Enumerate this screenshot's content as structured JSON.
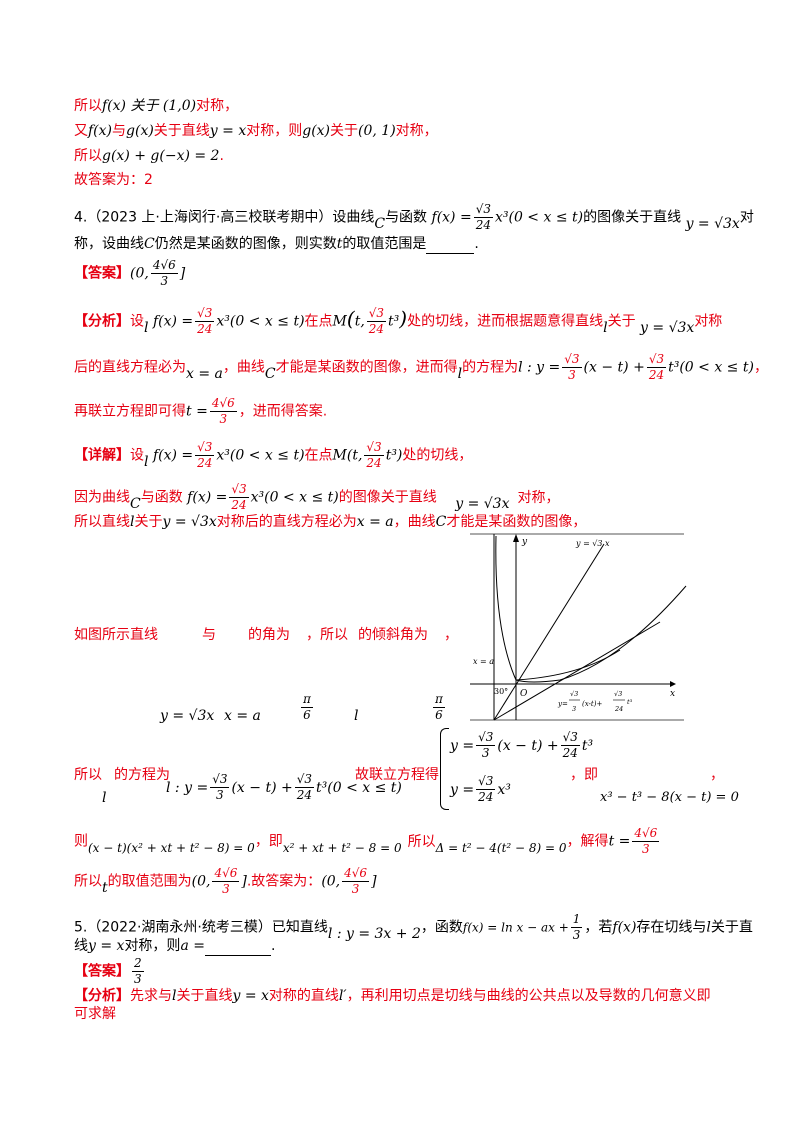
{
  "p3": {
    "l1": "所以",
    "l1_math": "f(x) 关于 (1,0)",
    "l1_end": "对称，",
    "l2a": "又",
    "l2_math1": "f(x)",
    "l2b": "与",
    "l2_math2": "g(x)",
    "l2c": "关于直线",
    "l2_math3": "y = x",
    "l2d": "对称，则",
    "l2_math4": "g(x)",
    "l2e": "关于",
    "l2_math5": "(0, 1)",
    "l2f": "对称，",
    "l3a": "所以",
    "l3_math": "g(x) + g(−x) = 2",
    "l3b": ".",
    "l4": "故答案为：2"
  },
  "q4": {
    "head": "4.（2023 上·上海闵行·高三校联考期中）设曲线",
    "head_C": "C",
    "head2": "与函数",
    "head_f": "f(x) =",
    "frac_num": "√3",
    "frac_den": "24",
    "head_f2": "x³(0 < x ≤ t)",
    "head3": "的图像关于直线",
    "head_line": "y = √3x",
    "head4": "对",
    "l2a": "称，设曲线",
    "l2_C": "C",
    "l2b": "仍然是某函数的图像，则实数",
    "l2_t": "t",
    "l2c": "的取值范围是",
    "l2d": ".",
    "answer_label": "【答案】",
    "answer_val": "(0,",
    "answer_num": "4√6",
    "answer_den": "3",
    "answer_end": "]",
    "analysis_label": "【分析】",
    "an1a": "设",
    "an1_l": "l",
    "an1_f": "f(x) =",
    "an1_f2": "x³(0 < x ≤ t)",
    "an1b": "在点",
    "an1_M": "M",
    "an1_Mt": "t,",
    "an1_Mt3": "t³",
    "an1c": "处的切线，进而根据题意得直线",
    "an1_l2": "l",
    "an1d": "关于",
    "an1_line": "y = √3x",
    "an1e": "对称",
    "an2a": "后的直线方程必为",
    "an2_xa": "x = a",
    "an2b": "，曲线",
    "an2_C": "C",
    "an2c": "才能是某函数的图像，进而得",
    "an2_l": "l",
    "an2d": "的方程为",
    "an2_eq": "l : y =",
    "an2_n1": "√3",
    "an2_d1": "3",
    "an2_eq2": "(x − t) +",
    "an2_n2": "√3",
    "an2_d2": "24",
    "an2_eq3": "t³(0 < x ≤ t)",
    "an2e": "，",
    "an3a": "再联立方程即可得",
    "an3_t": "t =",
    "an3_num": "4√6",
    "an3_den": "3",
    "an3b": "，进而得答案.",
    "detail_label": "【详解】",
    "d1a": "设",
    "d1_l": "l",
    "d1_f": "f(x) =",
    "d1_f2": "x³(0 < x ≤ t)",
    "d1b": "在点",
    "d1_M": "M(t,",
    "d1_M2": "t³)",
    "d1c": "处的切线，",
    "d2a": "因为曲线",
    "d2_C": "C",
    "d2b": "与函数",
    "d2_f": "f(x) =",
    "d2_f2": "x³(0 < x ≤ t)",
    "d2c": "的图像关于直线",
    "d2_line": "y = √3x",
    "d2d": "对称，",
    "d3a": "所以直线",
    "d3_l": "l",
    "d3b": "关于",
    "d3_line": "y = √3x",
    "d3c": "对称后的直线方程必为",
    "d3_xa": "x = a",
    "d3d": "，曲线",
    "d3_C": "C",
    "d3e": "才能是某函数的图像，",
    "d4a": "如图所示直线",
    "d4b": "与",
    "d4c": "的角为",
    "d4d": "，所以",
    "d4e": "的倾斜角为",
    "d4f": "，",
    "d4_line": "y = √3x",
    "d4_xa": "x = a",
    "d4_pi": "π",
    "d4_6": "6",
    "d4_l": "l",
    "d5a": "所以",
    "d5b": "的方程为",
    "d5_l": "l",
    "d5_eq": "l : y =",
    "d5_eq2": "(x − t) +",
    "d5_eq3": "t³(0 < x ≤ t)",
    "d5c": "故联立方程得",
    "sys1": "y =",
    "sys1b": "(x − t) +",
    "sys1c": "t³",
    "sys2": "y =",
    "sys2b": "x³",
    "d5d": "，即",
    "d5e": "，",
    "d5_cubic": "x³ − t³ − 8(x − t) = 0",
    "d6a": "则",
    "d6_eq": "(x − t)(x² + xt + t² − 8) = 0",
    "d6b": "，即",
    "d6_eq2": "x² + xt + t² − 8 = 0",
    "d6c": "所以",
    "d6_eq3": "Δ = t² − 4(t² − 8) = 0",
    "d6d": "，解得",
    "d6_t": "t =",
    "d7a": "所以",
    "d7_t": "t",
    "d7b": "的取值范围为",
    "d7_val": "(0,",
    "d7_end": "]",
    "d7c": ".故答案为：",
    "d7_val2": "(0,",
    "d7_end2": "]"
  },
  "figure": {
    "y_label": "y",
    "x_label": "x",
    "line_label": "y = √3 x",
    "xa_label": "x = a",
    "angle_label": "30°",
    "origin_label": "O",
    "tangent_label_a": "y=",
    "tangent_label_b": "(x-t)+",
    "tangent_label_c": "t³",
    "f_n1": "√3",
    "f_d1": "3",
    "f_n2": "√3",
    "f_d2": "24"
  },
  "q5": {
    "head": "5.（2022·湖南永州·统考三模）已知直线",
    "head_l": "l : y = 3x + 2",
    "head2": "，函数",
    "head_f": "f(x) = ln x − ax +",
    "head_frac_n": "1",
    "head_frac_d": "3",
    "head3": "，若",
    "head_fx": "f(x)",
    "head4": "存在切线与",
    "head_l2": "l",
    "head5": "关于直",
    "l2a": "线",
    "l2_line": "y = x",
    "l2b": "对称，则",
    "l2_a": "a =",
    "l2c": ".",
    "answer_label": "【答案】",
    "answer_n": "2",
    "answer_d": "3",
    "analysis_label": "【分析】",
    "an1a": "先求与",
    "an1_l": "l",
    "an1b": "关于直线",
    "an1_line": "y = x",
    "an1c": "对称的直线",
    "an1_l2": "l′",
    "an1d": "，再利用切点是切线与曲线的公共点以及导数的几何意义即",
    "an2": "可求解"
  }
}
